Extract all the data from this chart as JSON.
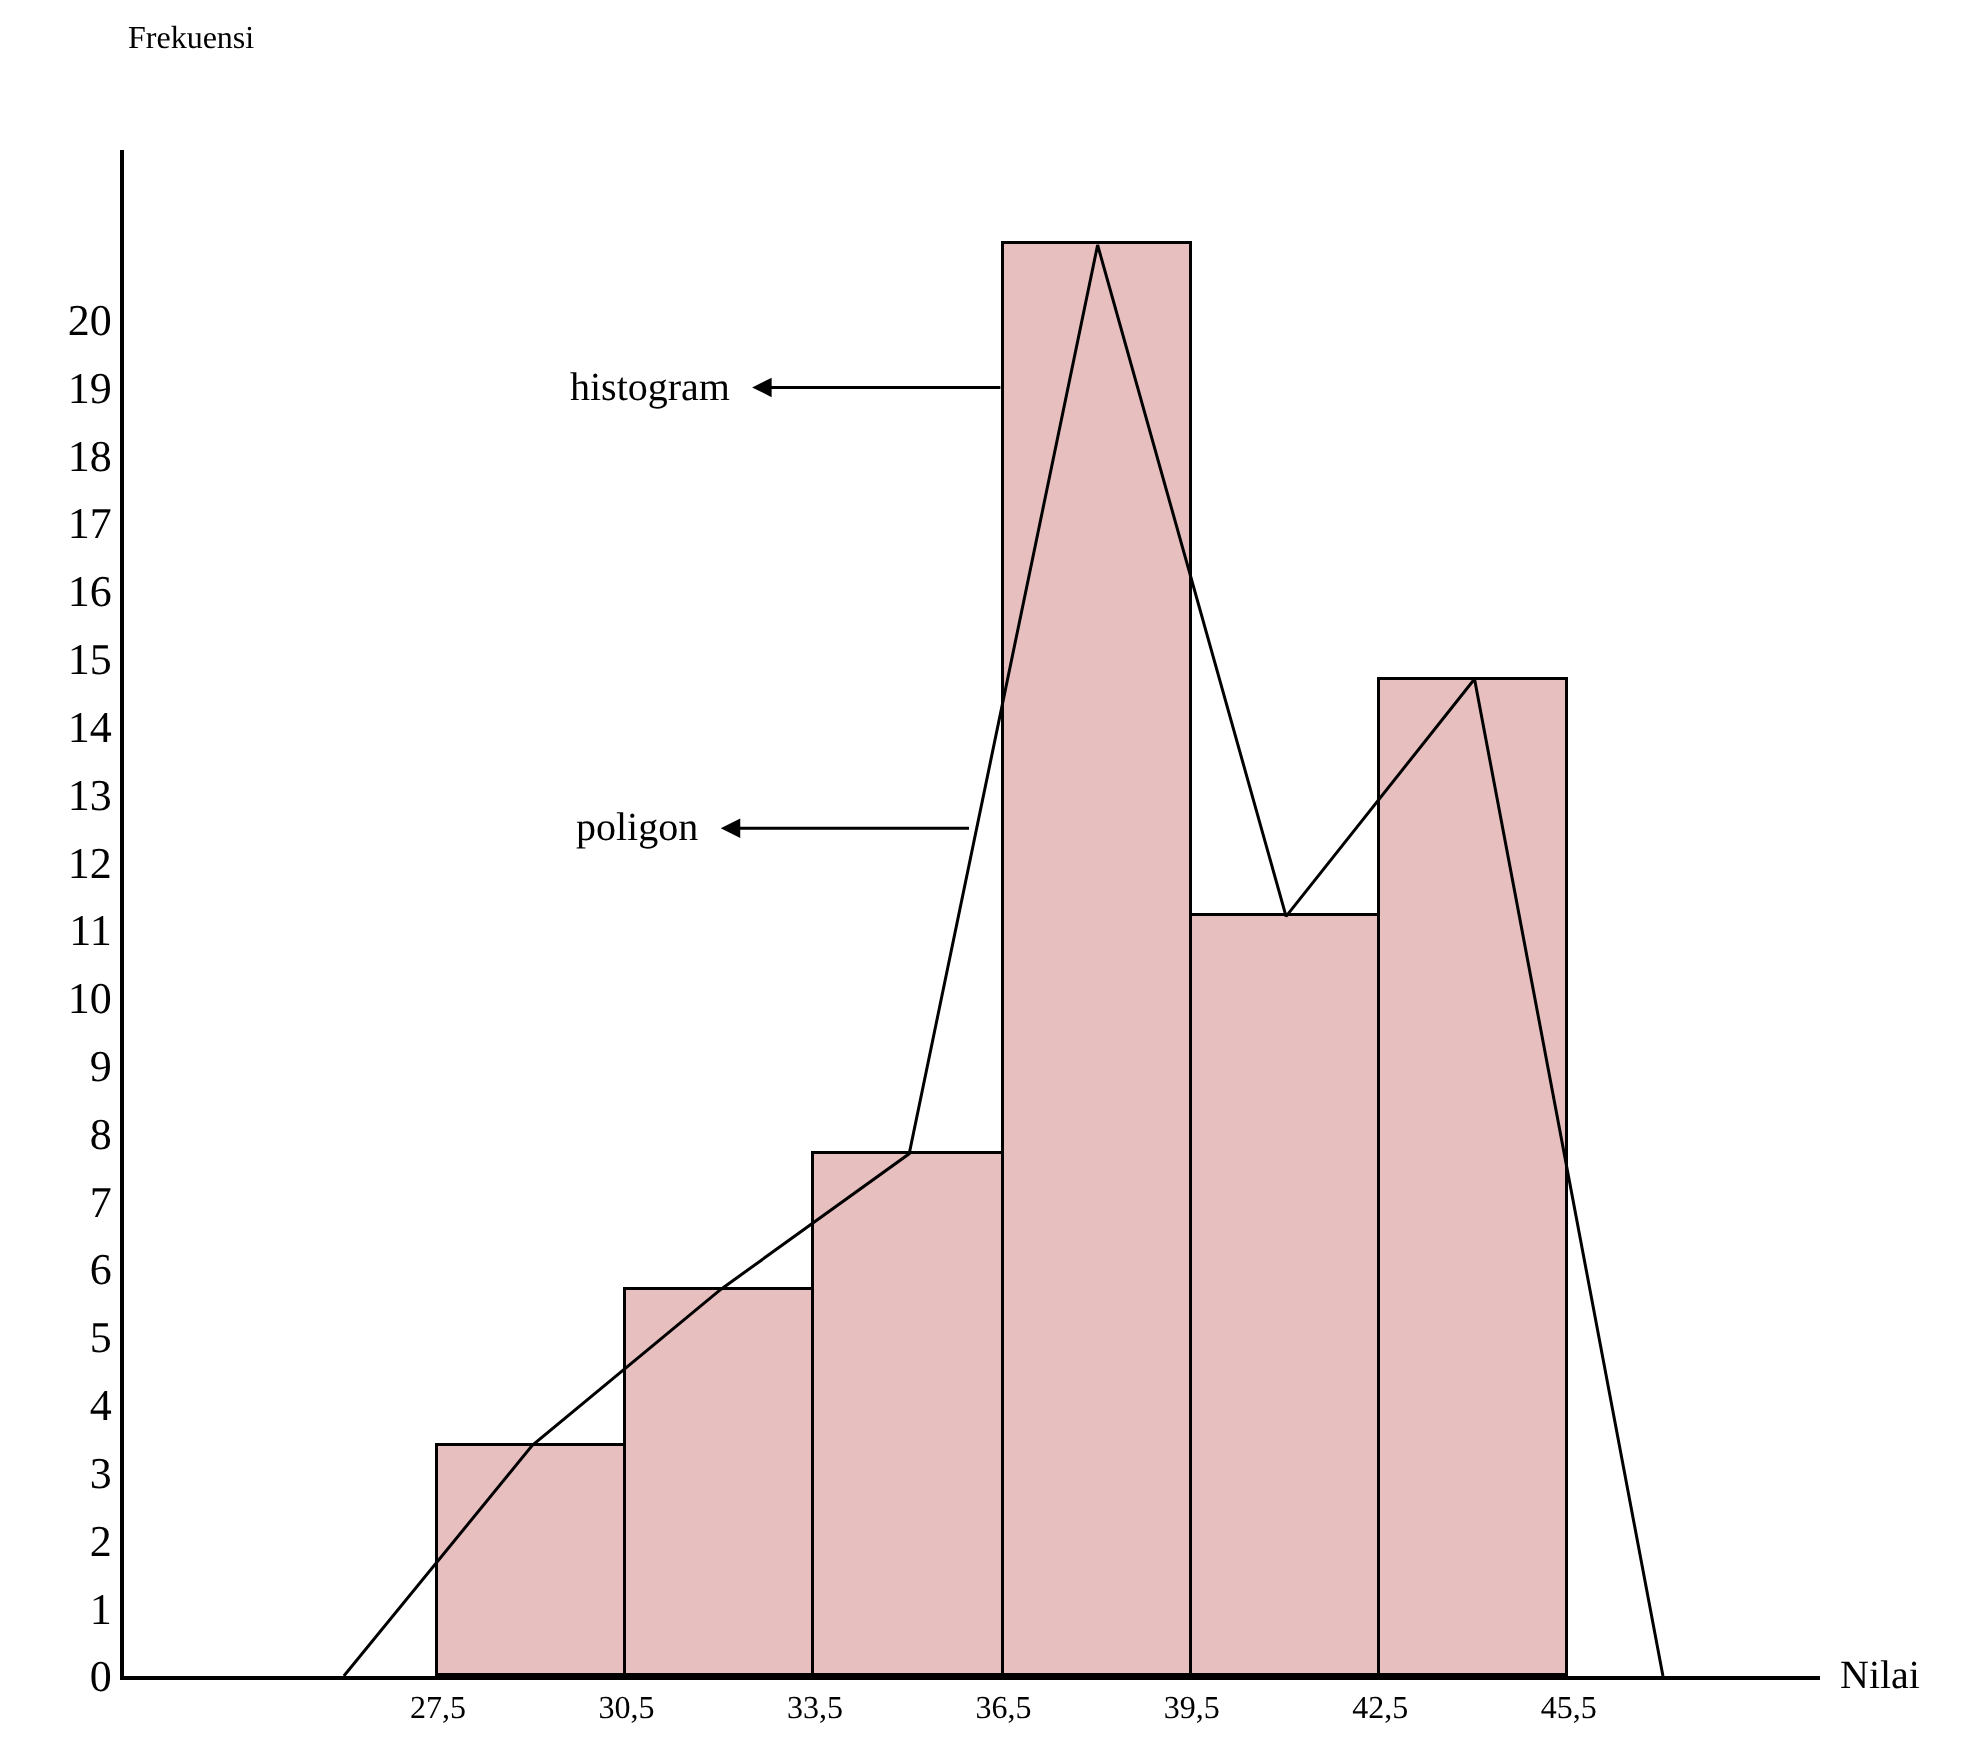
{
  "chart_data": {
    "type": "histogram",
    "xlabel": "Nilai",
    "ylabel": "Frekuensi",
    "bins": [
      27.5,
      30.5,
      33.5,
      36.5,
      39.5,
      42.5,
      45.5
    ],
    "values": [
      3.4,
      5.7,
      7.7,
      21.1,
      11.2,
      14.7
    ],
    "color": "#e8bfbf",
    "series": [
      {
        "type": "line",
        "color": "#000000",
        "x": [
          26,
          29,
          32,
          35,
          38,
          41,
          44,
          47
        ],
        "values": [
          0,
          3.4,
          5.7,
          7.7,
          21.1,
          11.2,
          14.7,
          0
        ]
      }
    ],
    "annotations": [
      {
        "text": "histogram",
        "x": 36.5,
        "y": 19
      },
      {
        "text": "poligon",
        "x": 36.0,
        "y": 12.5
      }
    ],
    "xlim": [
      22.5,
      49.5
    ],
    "xticks": [
      {
        "value": 27.5,
        "label": "27,5"
      },
      {
        "value": 30.5,
        "label": "30,5"
      },
      {
        "value": 33.5,
        "label": "33,5"
      },
      {
        "value": 36.5,
        "label": "36,5"
      },
      {
        "value": 39.5,
        "label": "39,5"
      },
      {
        "value": 42.5,
        "label": "42,5"
      },
      {
        "value": 45.5,
        "label": "45,5"
      }
    ],
    "ylim": [
      0,
      22.5
    ],
    "yticks": [
      0,
      1,
      2,
      3,
      4,
      5,
      6,
      7,
      8,
      9,
      10,
      11,
      12,
      13,
      14,
      15,
      16,
      17,
      18,
      19,
      20
    ],
    "marker": "none",
    "line_style": "solid"
  }
}
